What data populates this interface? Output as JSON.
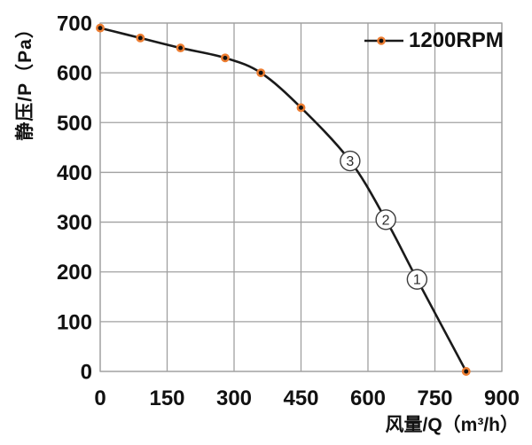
{
  "chart_data": {
    "type": "line",
    "title": "",
    "xlabel": "风量/Q（m³/h）",
    "ylabel": "静压/P（Pa）",
    "xlim": [
      0,
      900
    ],
    "ylim": [
      0,
      700
    ],
    "xticks": [
      0,
      150,
      300,
      450,
      600,
      750,
      900
    ],
    "yticks": [
      0,
      100,
      200,
      300,
      400,
      500,
      600,
      700
    ],
    "grid": true,
    "legend_position": "top-right-inside",
    "colors": {
      "grid": "#a0a0a0",
      "axis_text": "#111111",
      "background": "#ffffff"
    },
    "series": [
      {
        "name": "1200RPM",
        "line_color": "#1a1a1a",
        "marker_fill": "#111111",
        "marker_ring": "#ed7d31",
        "points": [
          [
            0,
            690
          ],
          [
            90,
            670
          ],
          [
            180,
            650
          ],
          [
            280,
            630
          ],
          [
            360,
            600
          ],
          [
            450,
            530
          ],
          [
            820,
            0
          ]
        ],
        "curve": [
          [
            0,
            690
          ],
          [
            90,
            670
          ],
          [
            180,
            650
          ],
          [
            280,
            630
          ],
          [
            360,
            600
          ],
          [
            450,
            530
          ],
          [
            560,
            423
          ],
          [
            640,
            305
          ],
          [
            710,
            185
          ],
          [
            820,
            0
          ]
        ]
      }
    ],
    "annotations": [
      {
        "label": "3",
        "x": 560,
        "y": 423
      },
      {
        "label": "2",
        "x": 640,
        "y": 305
      },
      {
        "label": "1",
        "x": 710,
        "y": 185
      }
    ]
  }
}
